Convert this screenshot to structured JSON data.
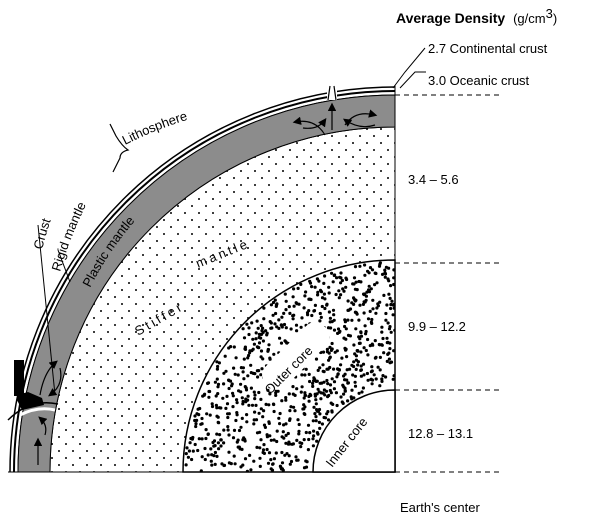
{
  "header": {
    "title": "Average Density",
    "units_prefix": "(g/cm",
    "units_sup": "3",
    "units_suffix": ")"
  },
  "densities": [
    {
      "layer": "continental-crust",
      "text": "2.7 Continental crust"
    },
    {
      "layer": "oceanic-crust",
      "text": "3.0 Oceanic crust"
    },
    {
      "layer": "mantle",
      "text": "3.4 – 5.6"
    },
    {
      "layer": "outer-core",
      "text": "9.9 – 12.2"
    },
    {
      "layer": "inner-core",
      "text": "12.8 – 13.1"
    }
  ],
  "labels": {
    "lithosphere": "Lithosphere",
    "crust": "Crust",
    "rigid_mantle": "Rigid mantle",
    "plastic_mantle": "Plastic mantle",
    "stiffer": "Stiffer",
    "mantle": "mantle",
    "outer_core": "Outer core",
    "inner_core": "Inner core",
    "earths_center": "Earth's center"
  },
  "colors": {
    "plastic_mantle_fill": "#8c8c8c",
    "ink": "#000000",
    "background": "#ffffff"
  }
}
